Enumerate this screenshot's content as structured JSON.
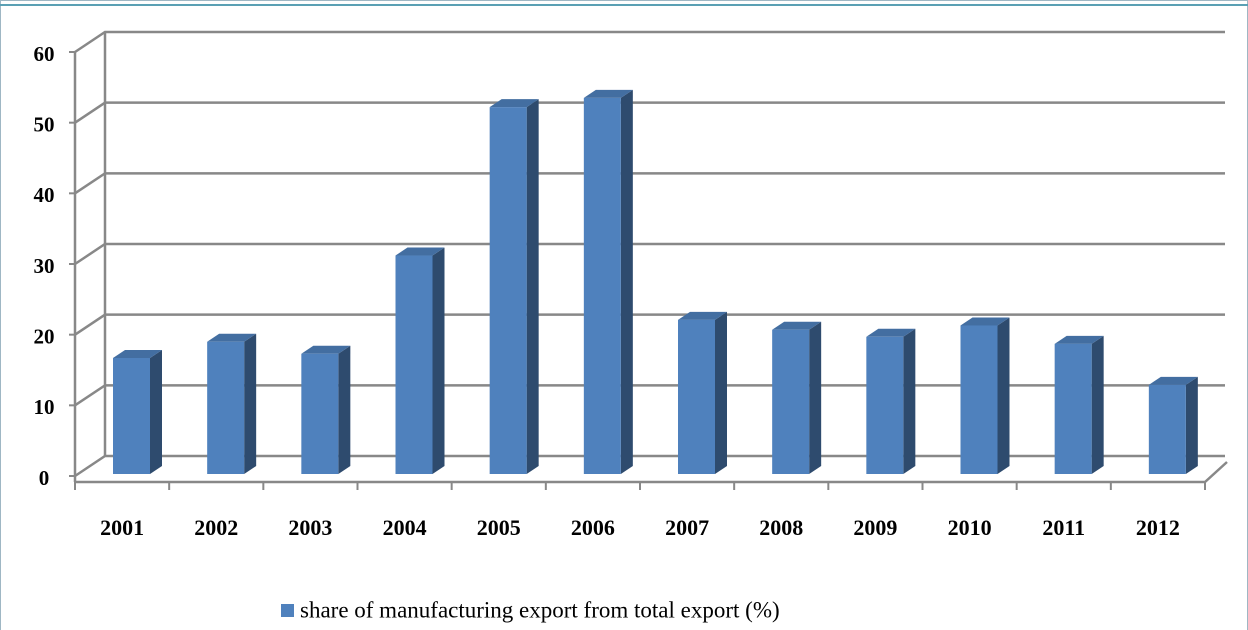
{
  "chart_data": {
    "type": "bar",
    "categories": [
      "2001",
      "2002",
      "2003",
      "2004",
      "2005",
      "2006",
      "2007",
      "2008",
      "2009",
      "2010",
      "2011",
      "2012"
    ],
    "series": [
      {
        "name": "share of manufacturing export from total export (%)",
        "color": "#4f81bd",
        "values": [
          16.7,
          19.0,
          17.3,
          31.2,
          52.2,
          53.5,
          22.1,
          20.7,
          19.7,
          21.3,
          18.7,
          12.9
        ]
      }
    ],
    "ylim": [
      0,
      60
    ],
    "yticks": [
      0,
      10,
      20,
      30,
      40,
      50,
      60
    ],
    "grid": true,
    "legend": "bottom"
  }
}
